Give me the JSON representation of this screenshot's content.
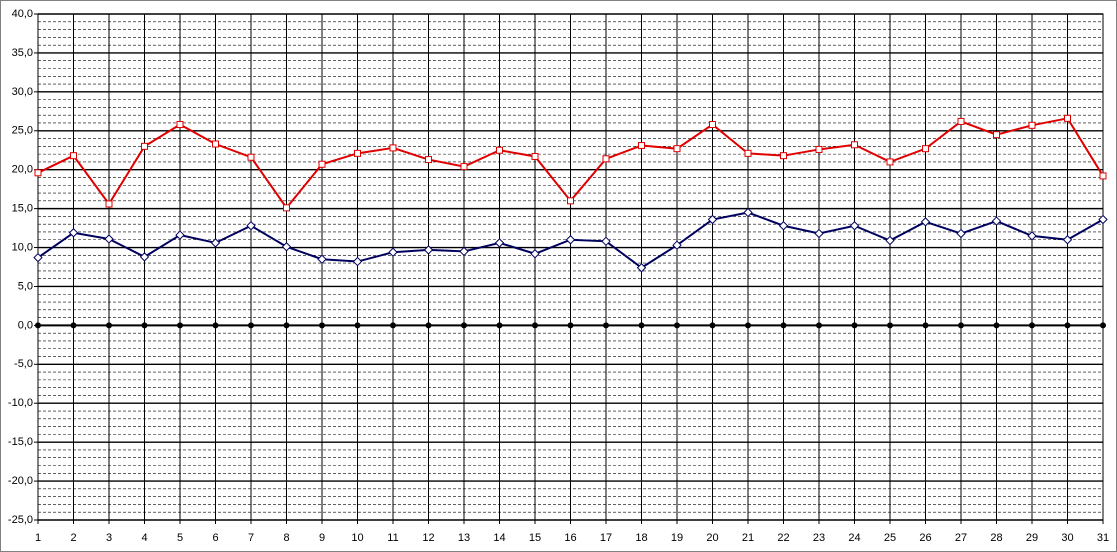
{
  "chart_data": {
    "type": "line",
    "categories": [
      "1",
      "2",
      "3",
      "4",
      "5",
      "6",
      "7",
      "8",
      "9",
      "10",
      "11",
      "12",
      "13",
      "14",
      "15",
      "16",
      "17",
      "18",
      "19",
      "20",
      "21",
      "22",
      "23",
      "24",
      "25",
      "26",
      "27",
      "28",
      "29",
      "30",
      "31"
    ],
    "series": [
      {
        "color": "#e00000",
        "marker": "square",
        "values": [
          19.6,
          21.8,
          15.6,
          23.0,
          25.8,
          23.3,
          21.6,
          15.1,
          20.7,
          22.1,
          22.8,
          21.3,
          20.4,
          22.5,
          21.7,
          16.0,
          21.4,
          23.1,
          22.7,
          25.8,
          22.1,
          21.8,
          22.6,
          23.2,
          21.0,
          22.7,
          26.2,
          24.5,
          25.7,
          26.6,
          19.2
        ]
      },
      {
        "color": "#00005e",
        "marker": "diamond",
        "values": [
          8.7,
          11.9,
          11.1,
          8.8,
          11.6,
          10.6,
          12.8,
          10.1,
          8.5,
          8.2,
          9.4,
          9.7,
          9.5,
          10.6,
          9.2,
          11.0,
          10.8,
          7.4,
          10.3,
          13.6,
          14.5,
          12.8,
          11.8,
          12.8,
          10.9,
          13.3,
          11.8,
          13.4,
          11.5,
          11.0,
          13.6
        ]
      },
      {
        "color": "#000000",
        "marker": "dot",
        "values": [
          0,
          0,
          0,
          0,
          0,
          0,
          0,
          0,
          0,
          0,
          0,
          0,
          0,
          0,
          0,
          0,
          0,
          0,
          0,
          0,
          0,
          0,
          0,
          0,
          0,
          0,
          0,
          0,
          0,
          0,
          0
        ]
      }
    ],
    "ylim": [
      -25,
      40
    ],
    "yticks": [
      {
        "value": -25,
        "label": "-25,0"
      },
      {
        "value": -20,
        "label": "-20,0"
      },
      {
        "value": -15,
        "label": "-15,0"
      },
      {
        "value": -10,
        "label": "-10,0"
      },
      {
        "value": -5,
        "label": "-5,0"
      },
      {
        "value": 0,
        "label": "0,0"
      },
      {
        "value": 5,
        "label": "5,0"
      },
      {
        "value": 10,
        "label": "10,0"
      },
      {
        "value": 15,
        "label": "15,0"
      },
      {
        "value": 20,
        "label": "20,0"
      },
      {
        "value": 25,
        "label": "25,0"
      },
      {
        "value": 30,
        "label": "30,0"
      },
      {
        "value": 35,
        "label": "35,0"
      },
      {
        "value": 40,
        "label": "40,0"
      }
    ],
    "grid": true
  }
}
